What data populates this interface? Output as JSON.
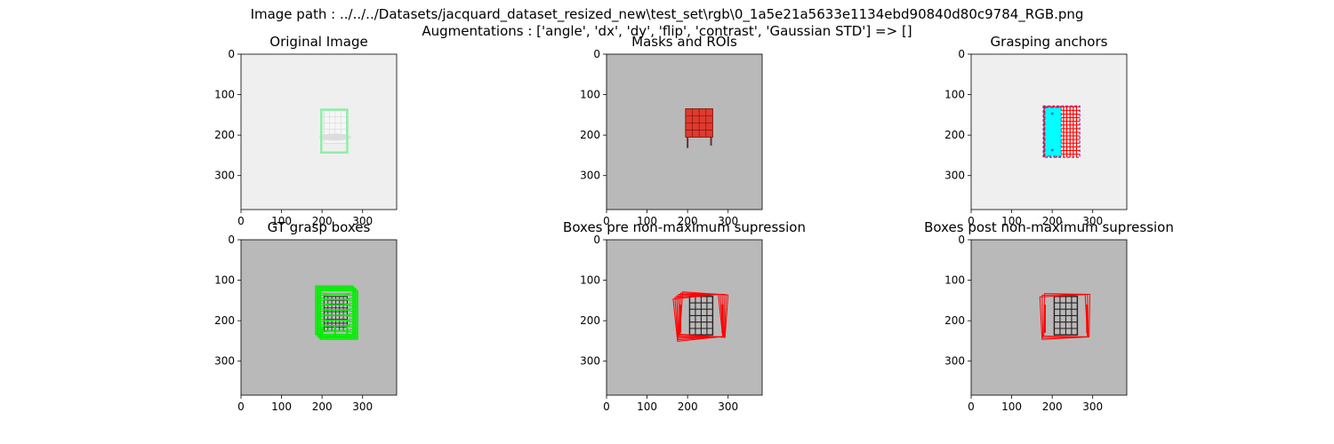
{
  "figure": {
    "title_line1": "Image path : ../../../Datasets/jacquard_dataset_resized_new\\test_set\\rgb\\0_1a5e21a5633e1134ebd90840d80c9784_RGB.png",
    "title_line2": "Augmentations : ['angle', 'dx', 'dy', 'flip', 'contrast', 'Gaussian STD'] => []"
  },
  "colors": {
    "light_bg": "#efefef",
    "gray_bg": "#b9b9b9",
    "roi_green": "#90eeaa",
    "mask_red": "#e03a2f",
    "anchor_cyan": "#00ffff",
    "anchor_red": "#ff0000",
    "gt_green": "#00ee00",
    "box_red": "#ff0000",
    "object_dark": "#2a2020"
  },
  "chart_data": [
    {
      "type": "image",
      "title": "Original Image",
      "xlim": [
        0,
        384
      ],
      "ylim": [
        384,
        0
      ],
      "xticks": [
        0,
        100,
        200,
        300
      ],
      "yticks": [
        0,
        100,
        200,
        300
      ],
      "grid": false
    },
    {
      "type": "image",
      "title": "Masks and ROIs",
      "xlim": [
        0,
        384
      ],
      "ylim": [
        384,
        0
      ],
      "xticks": [
        0,
        100,
        200,
        300
      ],
      "yticks": [
        0,
        100,
        200,
        300
      ],
      "grid": false
    },
    {
      "type": "image",
      "title": "Grasping anchors",
      "xlim": [
        0,
        384
      ],
      "ylim": [
        384,
        0
      ],
      "xticks": [
        0,
        100,
        200,
        300
      ],
      "yticks": [
        0,
        100,
        200,
        300
      ],
      "grid": false
    },
    {
      "type": "image",
      "title": "GT grasp boxes",
      "xlim": [
        0,
        384
      ],
      "ylim": [
        384,
        0
      ],
      "xticks": [
        0,
        100,
        200,
        300
      ],
      "yticks": [
        0,
        100,
        200,
        300
      ],
      "grid": false
    },
    {
      "type": "image",
      "title": "Boxes pre non-maximum supression",
      "xlim": [
        0,
        384
      ],
      "ylim": [
        384,
        0
      ],
      "xticks": [
        0,
        100,
        200,
        300
      ],
      "yticks": [
        0,
        100,
        200,
        300
      ],
      "grid": false
    },
    {
      "type": "image",
      "title": "Boxes post non-maximum supression",
      "xlim": [
        0,
        384
      ],
      "ylim": [
        384,
        0
      ],
      "xticks": [
        0,
        100,
        200,
        300
      ],
      "yticks": [
        0,
        100,
        200,
        300
      ],
      "grid": false
    }
  ]
}
